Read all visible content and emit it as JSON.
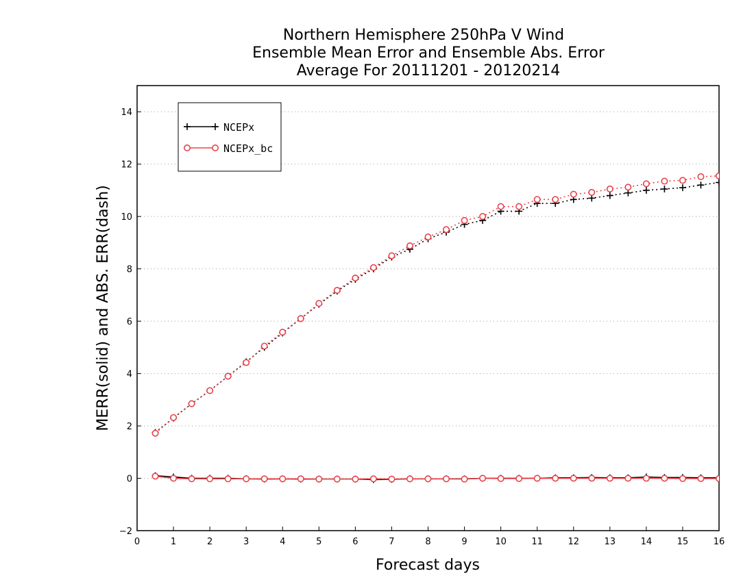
{
  "chart_data": {
    "type": "line",
    "title_lines": [
      "Northern Hemisphere 250hPa V Wind",
      "Ensemble Mean Error and Ensemble Abs. Error",
      "Average For 20111201 - 20120214"
    ],
    "xlabel": "Forecast days",
    "ylabel": "MERR(solid) and ABS. ERR(dash)",
    "xlim": [
      0,
      16
    ],
    "ylim": [
      -2,
      15
    ],
    "x_ticks": [
      0,
      1,
      2,
      3,
      4,
      5,
      6,
      7,
      8,
      9,
      10,
      11,
      12,
      13,
      14,
      15,
      16
    ],
    "y_ticks": [
      -2,
      0,
      2,
      4,
      6,
      8,
      10,
      12,
      14
    ],
    "grid": "horizontal dotted",
    "legend_position": "top-left",
    "x": [
      0.5,
      1,
      1.5,
      2,
      2.5,
      3,
      3.5,
      4,
      4.5,
      5,
      5.5,
      6,
      6.5,
      7,
      7.5,
      8,
      8.5,
      9,
      9.5,
      10,
      10.5,
      11,
      11.5,
      12,
      12.5,
      13,
      13.5,
      14,
      14.5,
      15,
      15.5,
      16
    ],
    "series": [
      {
        "name": "NCEPx",
        "color": "#000000",
        "marker": "plus",
        "abs_err": [
          1.75,
          2.3,
          2.85,
          3.35,
          3.9,
          4.45,
          5.0,
          5.55,
          6.1,
          6.65,
          7.15,
          7.6,
          8.0,
          8.45,
          8.75,
          9.15,
          9.4,
          9.7,
          9.85,
          10.2,
          10.2,
          10.5,
          10.5,
          10.65,
          10.7,
          10.8,
          10.9,
          11.0,
          11.05,
          11.1,
          11.2,
          11.3
        ],
        "mean_err": [
          0.1,
          0.05,
          0.0,
          0.0,
          0.0,
          -0.02,
          -0.03,
          -0.02,
          -0.03,
          -0.03,
          -0.03,
          -0.03,
          -0.05,
          -0.04,
          -0.02,
          -0.02,
          -0.02,
          -0.02,
          0.0,
          0.0,
          0.0,
          0.0,
          0.02,
          0.02,
          0.03,
          0.02,
          0.02,
          0.05,
          0.03,
          0.03,
          0.02,
          0.02
        ]
      },
      {
        "name": "NCEPx_bc",
        "color": "#e8434b",
        "marker": "circle",
        "abs_err": [
          1.72,
          2.32,
          2.85,
          3.35,
          3.9,
          4.42,
          5.05,
          5.58,
          6.1,
          6.68,
          7.18,
          7.65,
          8.05,
          8.5,
          8.88,
          9.22,
          9.5,
          9.85,
          10.0,
          10.38,
          10.38,
          10.65,
          10.65,
          10.85,
          10.92,
          11.05,
          11.12,
          11.25,
          11.35,
          11.38,
          11.52,
          11.55
        ],
        "mean_err": [
          0.08,
          0.0,
          -0.02,
          -0.02,
          -0.02,
          -0.02,
          -0.02,
          -0.02,
          -0.02,
          -0.03,
          -0.03,
          -0.03,
          -0.02,
          -0.03,
          -0.02,
          -0.02,
          -0.02,
          -0.03,
          0.0,
          -0.01,
          -0.01,
          0.0,
          0.0,
          0.0,
          0.0,
          0.0,
          0.0,
          0.0,
          0.0,
          -0.01,
          -0.01,
          -0.01
        ]
      }
    ]
  }
}
